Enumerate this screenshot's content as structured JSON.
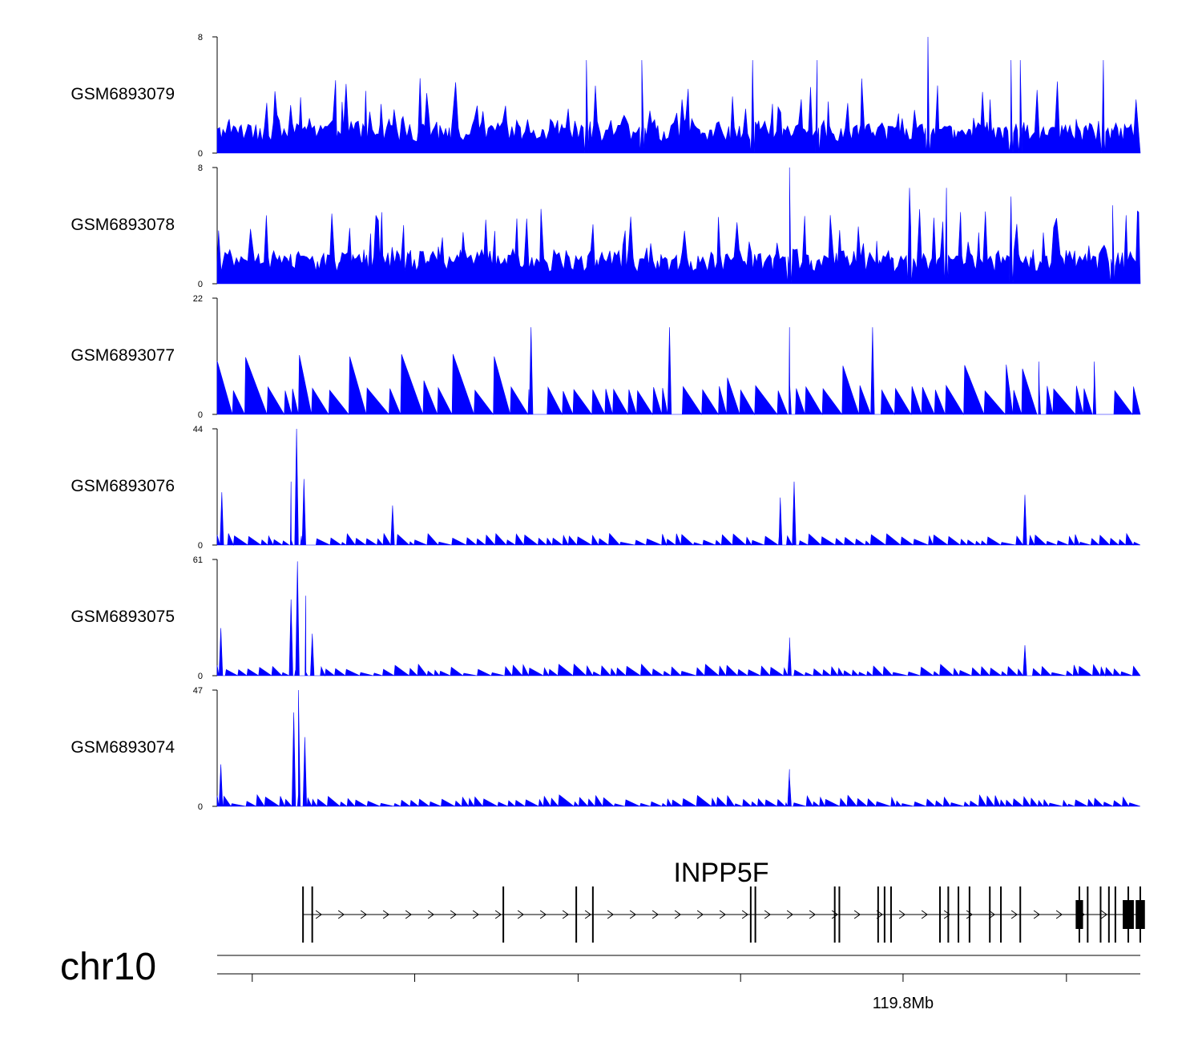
{
  "chart_data": {
    "type": "area",
    "chromosome": "chr10",
    "tracks": [
      {
        "label": "GSM6893079",
        "ymin": 0,
        "ymax": 8,
        "peaks": [
          [
            0.4,
            6.4
          ],
          [
            0.46,
            6.4
          ],
          [
            0.58,
            6.4
          ],
          [
            0.65,
            6.4
          ],
          [
            0.77,
            8.0
          ],
          [
            0.86,
            6.4
          ],
          [
            0.87,
            6.4
          ],
          [
            0.96,
            6.4
          ]
        ]
      },
      {
        "label": "GSM6893078",
        "ymin": 0,
        "ymax": 8,
        "peaks": [
          [
            0.62,
            8.0
          ],
          [
            0.75,
            6.6
          ],
          [
            0.79,
            6.6
          ],
          [
            0.86,
            6.0
          ],
          [
            0.97,
            5.4
          ]
        ]
      },
      {
        "label": "GSM6893077",
        "ymin": 0,
        "ymax": 22,
        "peaks": [
          [
            0.34,
            16.5
          ],
          [
            0.49,
            16.5
          ],
          [
            0.62,
            16.5
          ],
          [
            0.71,
            16.5
          ],
          [
            0.89,
            10.0
          ],
          [
            0.95,
            10.0
          ]
        ]
      },
      {
        "label": "GSM6893076",
        "ymin": 0,
        "ymax": 44,
        "peaks": [
          [
            0.005,
            20
          ],
          [
            0.08,
            24
          ],
          [
            0.086,
            44
          ],
          [
            0.094,
            25
          ],
          [
            0.19,
            15
          ],
          [
            0.61,
            18
          ],
          [
            0.625,
            24
          ],
          [
            0.875,
            19
          ]
        ]
      },
      {
        "label": "GSM6893075",
        "ymin": 0,
        "ymax": 61,
        "peaks": [
          [
            0.004,
            25
          ],
          [
            0.08,
            40
          ],
          [
            0.087,
            60
          ],
          [
            0.096,
            42
          ],
          [
            0.103,
            22
          ],
          [
            0.62,
            15
          ],
          [
            0.62,
            20
          ],
          [
            0.875,
            16
          ]
        ]
      },
      {
        "label": "GSM6893074",
        "ymin": 0,
        "ymax": 47,
        "peaks": [
          [
            0.004,
            17
          ],
          [
            0.083,
            38
          ],
          [
            0.088,
            47
          ],
          [
            0.095,
            28
          ],
          [
            0.62,
            15
          ],
          [
            0.62,
            12
          ]
        ]
      }
    ],
    "gene": {
      "name": "INPP5F",
      "strand": "+",
      "exons": [
        [
          0.093,
          0.006
        ],
        [
          0.103,
          0.003
        ],
        [
          0.31,
          0.003
        ],
        [
          0.389,
          0.0025
        ],
        [
          0.407,
          0.0025
        ],
        [
          0.578,
          0.002
        ],
        [
          0.583,
          0.002
        ],
        [
          0.669,
          0.002
        ],
        [
          0.674,
          0.002
        ],
        [
          0.716,
          0.002
        ],
        [
          0.723,
          0.002
        ],
        [
          0.73,
          0.002
        ],
        [
          0.783,
          0.002
        ],
        [
          0.792,
          0.002
        ],
        [
          0.803,
          0.002
        ],
        [
          0.815,
          0.002
        ],
        [
          0.837,
          0.002
        ],
        [
          0.849,
          0.002
        ],
        [
          0.87,
          0.002
        ],
        [
          0.934,
          0.008
        ],
        [
          0.943,
          0.004
        ],
        [
          0.957,
          0.002
        ],
        [
          0.966,
          0.002
        ],
        [
          0.973,
          0.002
        ],
        [
          0.987,
          0.012
        ],
        [
          1.0,
          0.01
        ]
      ]
    },
    "axis": {
      "tick_label": "119.8Mb",
      "tick_label_fraction": 0.743,
      "ticks": [
        0.038,
        0.214,
        0.391,
        0.567,
        0.743,
        0.92
      ]
    }
  }
}
